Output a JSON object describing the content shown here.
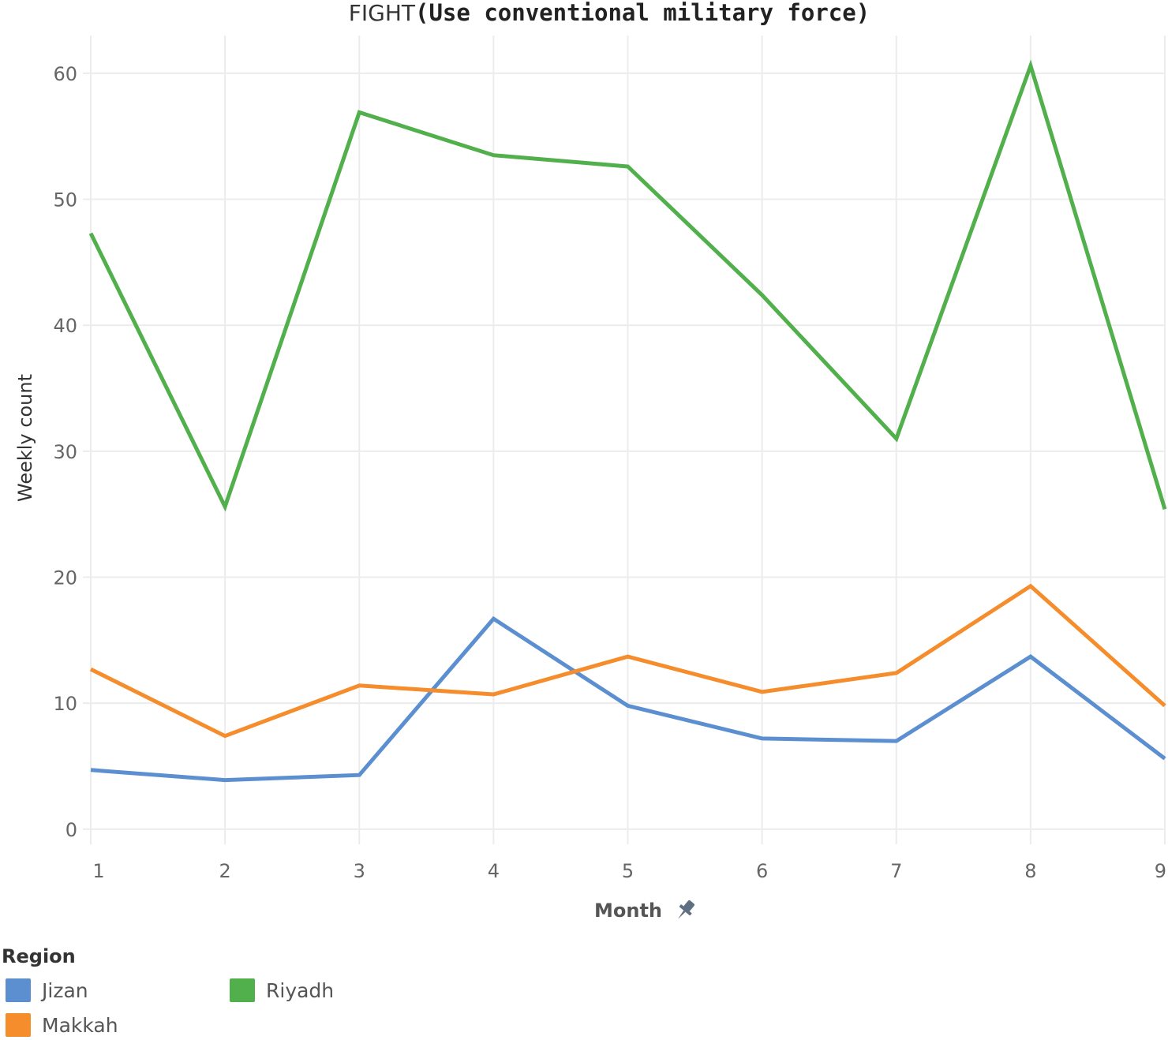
{
  "chart_data": {
    "type": "line",
    "title_prefix": "FIGHT",
    "title_main": "(Use conventional military force)",
    "xlabel": "Month",
    "ylabel": "Weekly count",
    "x": [
      1,
      2,
      3,
      4,
      5,
      6,
      7,
      8,
      9
    ],
    "x_tick_labels": [
      "1",
      "2",
      "3",
      "4",
      "5",
      "6",
      "7",
      "8",
      "9"
    ],
    "y_ticks": [
      0,
      10,
      20,
      30,
      40,
      50,
      60
    ],
    "y_tick_labels": [
      "0",
      "10",
      "20",
      "30",
      "40",
      "50",
      "60"
    ],
    "ylim": [
      -1.2,
      63
    ],
    "xlim": [
      1,
      9
    ],
    "grid": true,
    "series": [
      {
        "name": "Jizan",
        "color": "#5b8fd0",
        "values": [
          4.7,
          3.9,
          4.3,
          16.7,
          9.8,
          7.2,
          7.0,
          13.7,
          5.6
        ]
      },
      {
        "name": "Makkah",
        "color": "#f58d2c",
        "values": [
          12.7,
          7.4,
          11.4,
          10.7,
          13.7,
          10.9,
          12.4,
          19.3,
          9.8
        ]
      },
      {
        "name": "Riyadh",
        "color": "#51b04b",
        "values": [
          47.3,
          25.6,
          56.9,
          53.5,
          52.6,
          42.4,
          31.0,
          60.6,
          25.4
        ]
      }
    ],
    "legend": {
      "title": "Region",
      "placement": "bottom-left",
      "items": [
        {
          "name": "Jizan",
          "color": "#5b8fd0"
        },
        {
          "name": "Makkah",
          "color": "#f58d2c"
        },
        {
          "name": "Riyadh",
          "color": "#51b04b"
        }
      ]
    },
    "xlabel_icon": "pin-icon"
  }
}
